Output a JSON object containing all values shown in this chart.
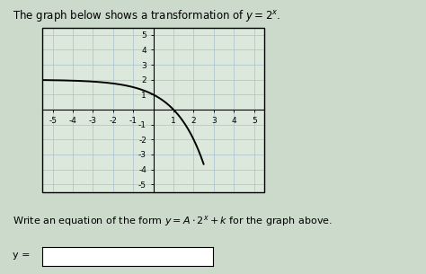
{
  "title": "The graph below shows a transformation of $y = 2^x$.",
  "subtitle_text": "Write an equation of the form $y = A \\cdot 2^x + k$ for the graph above.",
  "y_label_text": "y =",
  "A": -1,
  "k": 2,
  "xlim": [
    -5.5,
    5.5
  ],
  "ylim": [
    -5.5,
    5.5
  ],
  "xticks": [
    -5,
    -4,
    -3,
    -2,
    -1,
    1,
    2,
    3,
    4,
    5
  ],
  "yticks": [
    -5,
    -4,
    -3,
    -2,
    -1,
    1,
    2,
    3,
    4,
    5
  ],
  "grid_color": "#a8c0d0",
  "curve_color": "#000000",
  "curve_lw": 1.4,
  "bg_color": "#dce8dc",
  "fig_bg_color": "#ccdacc",
  "tick_label_fontsize": 6.5,
  "title_fontsize": 8.5,
  "subtitle_fontsize": 8,
  "ylabel_fontsize": 8
}
